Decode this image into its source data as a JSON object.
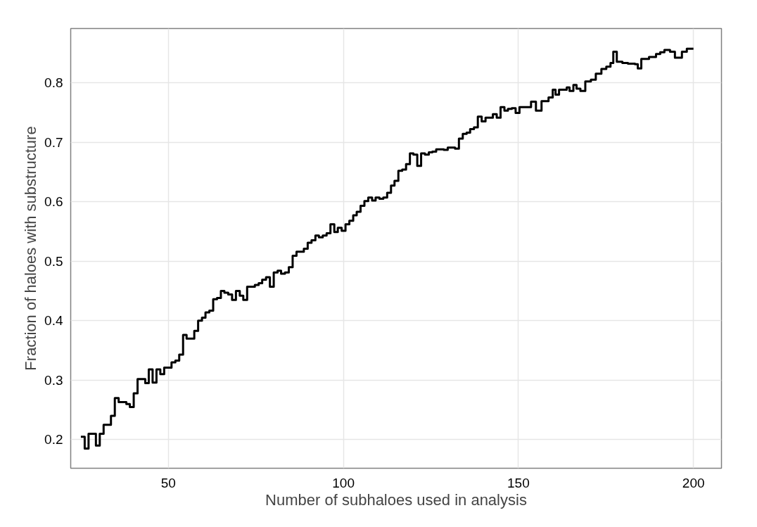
{
  "chart_data": {
    "type": "step",
    "xlabel": "Number of subhaloes used in analysis",
    "ylabel": "Fraction of haloes with substructure",
    "xlim": [
      22.1,
      208
    ],
    "ylim": [
      0.152,
      0.891
    ],
    "xticks": [
      50,
      100,
      150,
      200
    ],
    "yticks": [
      0.2,
      0.3,
      0.4,
      0.5,
      0.6,
      0.7,
      0.8
    ],
    "grid": true,
    "line_style": "solid",
    "series": [
      {
        "color": "#000000",
        "x": [
          25.0,
          26.1,
          27.2,
          28.2,
          29.3,
          30.4,
          31.5,
          32.6,
          33.6,
          34.7,
          35.8,
          36.9,
          38.0,
          39.0,
          40.1,
          41.2,
          42.3,
          43.4,
          44.4,
          45.5,
          46.6,
          47.7,
          48.8,
          49.8,
          50.9,
          52.0,
          53.1,
          54.2,
          55.2,
          56.3,
          57.4,
          58.5,
          59.6,
          60.6,
          61.7,
          62.8,
          63.9,
          65.0,
          66.0,
          67.1,
          68.2,
          69.3,
          70.4,
          71.4,
          72.5,
          73.6,
          74.7,
          75.8,
          76.8,
          77.9,
          79.0,
          80.1,
          81.2,
          82.2,
          83.3,
          84.4,
          85.5,
          86.6,
          87.6,
          88.7,
          89.8,
          90.9,
          92.0,
          93.0,
          94.1,
          95.2,
          96.3,
          97.4,
          98.4,
          99.5,
          100.6,
          101.7,
          102.8,
          103.8,
          104.9,
          106.0,
          107.1,
          108.2,
          109.2,
          110.3,
          111.4,
          112.5,
          113.6,
          114.6,
          115.7,
          116.8,
          117.9,
          119.0,
          120.0,
          121.1,
          122.2,
          123.3,
          124.4,
          125.4,
          126.5,
          127.6,
          128.7,
          129.8,
          130.8,
          131.9,
          133.0,
          134.1,
          135.2,
          136.2,
          137.3,
          138.4,
          139.5,
          140.6,
          141.6,
          142.7,
          143.8,
          144.9,
          146.0,
          147.0,
          148.1,
          149.2,
          150.3,
          153.6,
          155.0,
          156.6,
          158.6,
          159.8,
          160.6,
          161.6,
          163.8,
          164.6,
          165.7,
          166.6,
          167.7,
          169.1,
          170.7,
          172.1,
          173.7,
          175.1,
          176.3,
          177.1,
          178.1,
          179.7,
          181.3,
          183.3,
          184.1,
          185.1,
          187.3,
          189.3,
          190.5,
          191.7,
          193.3,
          194.7,
          196.7,
          198.1,
          200.0
        ],
        "values": [
          0.205,
          0.185,
          0.21,
          0.21,
          0.19,
          0.21,
          0.225,
          0.225,
          0.24,
          0.27,
          0.263,
          0.263,
          0.26,
          0.255,
          0.278,
          0.302,
          0.302,
          0.295,
          0.318,
          0.296,
          0.318,
          0.31,
          0.321,
          0.321,
          0.33,
          0.333,
          0.343,
          0.376,
          0.37,
          0.37,
          0.383,
          0.4,
          0.405,
          0.414,
          0.417,
          0.436,
          0.438,
          0.45,
          0.447,
          0.444,
          0.435,
          0.45,
          0.442,
          0.435,
          0.457,
          0.457,
          0.46,
          0.463,
          0.469,
          0.473,
          0.457,
          0.481,
          0.484,
          0.479,
          0.481,
          0.49,
          0.509,
          0.516,
          0.516,
          0.521,
          0.531,
          0.535,
          0.543,
          0.54,
          0.543,
          0.547,
          0.562,
          0.549,
          0.556,
          0.551,
          0.562,
          0.568,
          0.577,
          0.583,
          0.593,
          0.601,
          0.607,
          0.602,
          0.607,
          0.605,
          0.607,
          0.615,
          0.627,
          0.635,
          0.652,
          0.654,
          0.663,
          0.681,
          0.679,
          0.66,
          0.681,
          0.679,
          0.683,
          0.684,
          0.688,
          0.688,
          0.687,
          0.691,
          0.691,
          0.689,
          0.706,
          0.714,
          0.716,
          0.722,
          0.725,
          0.743,
          0.735,
          0.741,
          0.741,
          0.747,
          0.741,
          0.759,
          0.753,
          0.756,
          0.757,
          0.749,
          0.759,
          0.768,
          0.753,
          0.769,
          0.775,
          0.788,
          0.78,
          0.788,
          0.792,
          0.786,
          0.796,
          0.79,
          0.786,
          0.802,
          0.805,
          0.815,
          0.823,
          0.827,
          0.833,
          0.852,
          0.835,
          0.833,
          0.832,
          0.831,
          0.824,
          0.84,
          0.843,
          0.848,
          0.851,
          0.855,
          0.852,
          0.842,
          0.852,
          0.857,
          0.857
        ]
      }
    ]
  }
}
